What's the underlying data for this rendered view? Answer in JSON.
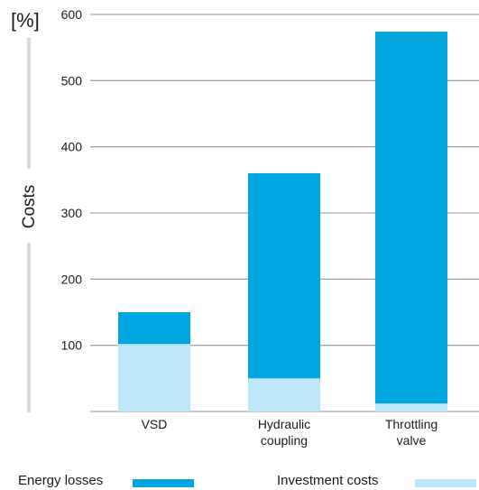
{
  "chart_data": {
    "type": "bar",
    "stacked": true,
    "unit_label": "[%]",
    "ylabel": "Costs",
    "xlabel": "",
    "ylim": [
      0,
      600
    ],
    "yticks": [
      100,
      200,
      300,
      400,
      500,
      600
    ],
    "grid": true,
    "categories": [
      [
        "VSD"
      ],
      [
        "Hydraulic",
        "coupling"
      ],
      [
        "Throttling",
        "valve"
      ]
    ],
    "series": [
      {
        "name": "Investment costs",
        "values": [
          102,
          50,
          12
        ],
        "color": "#bde6f8"
      },
      {
        "name": "Energy losses",
        "values": [
          48,
          310,
          562
        ],
        "color": "#00a6e0"
      }
    ],
    "legend": {
      "position": "bottom",
      "items": [
        {
          "label": "Energy losses",
          "color": "#00a6e0"
        },
        {
          "label": "Investment costs",
          "color": "#bde6f8"
        }
      ]
    }
  }
}
